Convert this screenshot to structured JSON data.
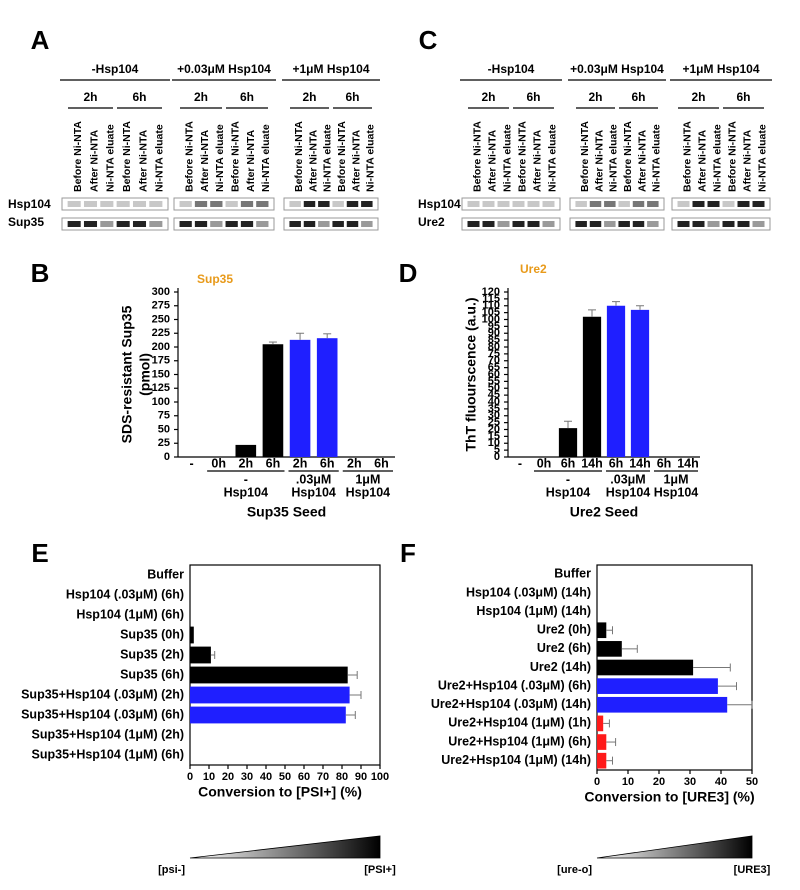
{
  "gels": [
    {
      "panel": "A",
      "groups": [
        "-Hsp104",
        "+0.03μM Hsp104",
        "+1μM Hsp104"
      ],
      "times": [
        "2h",
        "6h"
      ],
      "lanes": [
        "Before Ni-NTA",
        "After Ni-NTA",
        "Ni-NTA eluate"
      ],
      "rows": [
        "Hsp104",
        "Sup35"
      ]
    },
    {
      "panel": "C",
      "groups": [
        "-Hsp104",
        "+0.03μM Hsp104",
        "+1μM Hsp104"
      ],
      "times": [
        "2h",
        "6h"
      ],
      "lanes": [
        "Before Ni-NTA",
        "After Ni-NTA",
        "Ni-NTA eluate"
      ],
      "rows": [
        "Hsp104",
        "Ure2"
      ]
    }
  ],
  "chart_data": [
    {
      "type": "bar",
      "panel": "B",
      "annotation": "Sup35",
      "ylabel": [
        "SDS-resistant Sup35",
        "(pmol)"
      ],
      "xlabel": "Sup35 Seed",
      "categories": [
        "-",
        "0h",
        "2h",
        "6h",
        "2h",
        "6h",
        "2h",
        "6h"
      ],
      "values": [
        0,
        0,
        22,
        205,
        213,
        216,
        0,
        0
      ],
      "errors": [
        null,
        null,
        null,
        4,
        12,
        8,
        null,
        null
      ],
      "colors": [
        "#000000",
        "#000000",
        "#000000",
        "#000000",
        "#1f1fff",
        "#1f1fff",
        "#000000",
        "#000000"
      ],
      "group_labels": [
        [
          "-",
          "Hsp104"
        ],
        [
          ".03μM",
          "Hsp104"
        ],
        [
          "1μM",
          "Hsp104"
        ]
      ],
      "ylim": [
        0,
        300
      ],
      "yticks": [
        0,
        25,
        50,
        75,
        100,
        125,
        150,
        175,
        200,
        225,
        250,
        275,
        300
      ]
    },
    {
      "type": "bar",
      "panel": "D",
      "annotation": "Ure2",
      "ylabel": [
        "ThT fluourscence (a.u.)"
      ],
      "xlabel": "Ure2 Seed",
      "categories": [
        "-",
        "0h",
        "6h",
        "14h",
        "6h",
        "14h",
        "6h",
        "14h"
      ],
      "values": [
        0,
        0,
        21,
        102,
        110,
        107,
        0,
        0
      ],
      "errors": [
        null,
        null,
        5,
        5,
        3,
        3,
        null,
        null
      ],
      "colors": [
        "#000000",
        "#000000",
        "#000000",
        "#000000",
        "#1f1fff",
        "#1f1fff",
        "#000000",
        "#000000"
      ],
      "group_labels": [
        [
          "-",
          "Hsp104"
        ],
        [
          ".03μM",
          "Hsp104"
        ],
        [
          "1μM",
          "Hsp104"
        ]
      ],
      "ylim": [
        0,
        120
      ],
      "yticks": [
        0,
        5,
        10,
        15,
        20,
        25,
        30,
        35,
        40,
        45,
        50,
        55,
        60,
        65,
        70,
        75,
        80,
        85,
        90,
        95,
        100,
        105,
        110,
        115,
        120
      ]
    },
    {
      "type": "hbar",
      "panel": "E",
      "xlabel": "Conversion to [PSI+] (%)",
      "gradient_labels": [
        "[psi-]",
        "[PSI+]"
      ],
      "categories": [
        "Buffer",
        "Hsp104 (.03μM) (6h)",
        "Hsp104 (1μM) (6h)",
        "Sup35 (0h)",
        "Sup35 (2h)",
        "Sup35 (6h)",
        "Sup35+Hsp104 (.03μM) (2h)",
        "Sup35+Hsp104 (.03μM) (6h)",
        "Sup35+Hsp104 (1μM) (2h)",
        "Sup35+Hsp104 (1μM) (6h)"
      ],
      "values": [
        0,
        0,
        0,
        2,
        11,
        83,
        84,
        82,
        0,
        0
      ],
      "errors": [
        null,
        null,
        null,
        null,
        2,
        5,
        6,
        5,
        null,
        null
      ],
      "colors": [
        "#000000",
        "#000000",
        "#000000",
        "#000000",
        "#000000",
        "#000000",
        "#1f1fff",
        "#1f1fff",
        "#000000",
        "#000000"
      ],
      "xlim": [
        0,
        100
      ],
      "xticks": [
        0,
        10,
        20,
        30,
        40,
        50,
        60,
        70,
        80,
        90,
        100
      ]
    },
    {
      "type": "hbar",
      "panel": "F",
      "xlabel": "Conversion to [URE3] (%)",
      "gradient_labels": [
        "[ure-o]",
        "[URE3]"
      ],
      "categories": [
        "Buffer",
        "Hsp104 (.03μM) (14h)",
        "Hsp104 (1μM) (14h)",
        "Ure2 (0h)",
        "Ure2 (6h)",
        "Ure2 (14h)",
        "Ure2+Hsp104 (.03μM) (6h)",
        "Ure2+Hsp104 (.03μM) (14h)",
        "Ure2+Hsp104 (1μM) (1h)",
        "Ure2+Hsp104 (1μM) (6h)",
        "Ure2+Hsp104 (1μM) (14h)"
      ],
      "values": [
        0,
        0,
        0,
        3,
        8,
        31,
        39,
        42,
        2,
        3,
        3
      ],
      "errors": [
        null,
        null,
        null,
        2,
        5,
        12,
        6,
        8,
        2,
        3,
        2
      ],
      "colors": [
        "#000000",
        "#000000",
        "#000000",
        "#000000",
        "#000000",
        "#000000",
        "#1f1fff",
        "#1f1fff",
        "#ff1a1a",
        "#ff1a1a",
        "#ff1a1a"
      ],
      "xlim": [
        0,
        50
      ],
      "xticks": [
        0,
        10,
        20,
        30,
        40,
        50
      ]
    }
  ]
}
